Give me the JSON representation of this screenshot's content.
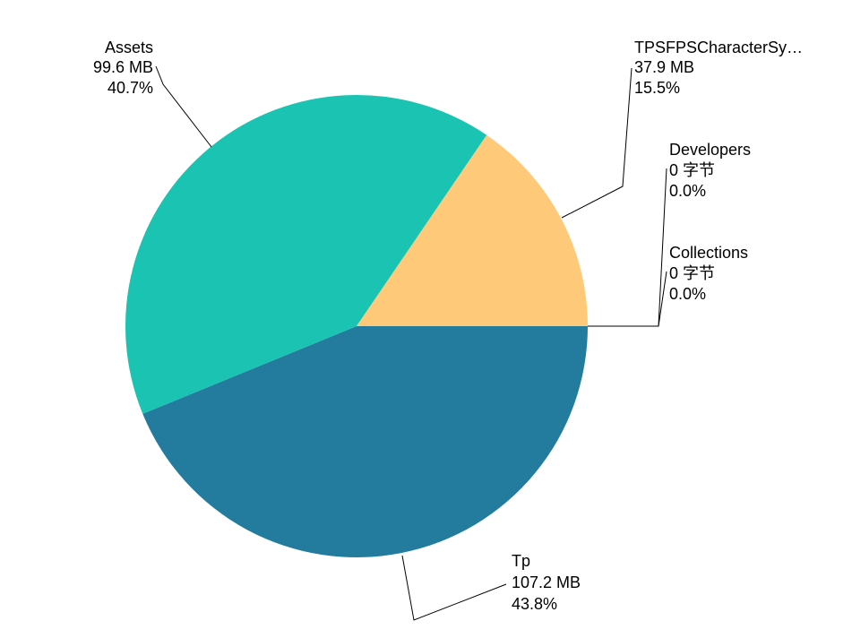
{
  "chart_data": {
    "type": "pie",
    "unit_note": "values in MB",
    "slices": [
      {
        "name": "Tp",
        "value": 107.2,
        "value_label": "107.2 MB",
        "percent": 43.8,
        "percent_label": "43.8%",
        "color": "#237B9E"
      },
      {
        "name": "Assets",
        "value": 99.6,
        "value_label": "99.6 MB",
        "percent": 40.7,
        "percent_label": "40.7%",
        "color": "#1BC3B2"
      },
      {
        "name": "TPSFPSCharacterSy…",
        "value": 37.9,
        "value_label": "37.9 MB",
        "percent": 15.5,
        "percent_label": "15.5%",
        "color": "#FECA7A"
      },
      {
        "name": "Developers",
        "value": 0,
        "value_label": "0 字节",
        "percent": 0.0,
        "percent_label": "0.0%",
        "color": "#E0E0E0"
      },
      {
        "name": "Collections",
        "value": 0,
        "value_label": "0 字节",
        "percent": 0.0,
        "percent_label": "0.0%",
        "color": "#E0E0E0"
      }
    ]
  }
}
